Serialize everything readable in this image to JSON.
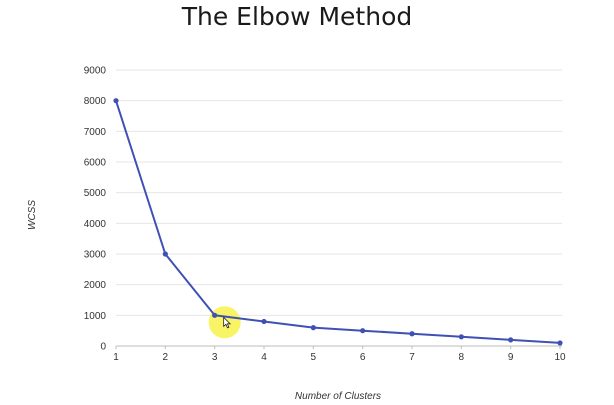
{
  "chart_data": {
    "type": "line",
    "title": "The Elbow Method",
    "xlabel": "Number of Clusters",
    "ylabel": "WCSS",
    "x": [
      1,
      2,
      3,
      4,
      5,
      6,
      7,
      8,
      9,
      10
    ],
    "xticks": [
      "1",
      "2",
      "3",
      "4",
      "5",
      "6",
      "7",
      "8",
      "9",
      "10"
    ],
    "yticks": [
      "0",
      "1000",
      "2000",
      "3000",
      "4000",
      "5000",
      "6000",
      "7000",
      "8000",
      "9000"
    ],
    "series": [
      {
        "values": [
          8000,
          3000,
          1000,
          800,
          600,
          500,
          400,
          300,
          200,
          100
        ]
      }
    ],
    "ylim": [
      0,
      9000
    ],
    "xlim": [
      1,
      10
    ],
    "grid": true,
    "highlight_x": 3,
    "colors": {
      "line": "#3f51b5",
      "grid": "#e6e6e6",
      "highlight": "#f7f24a"
    }
  }
}
